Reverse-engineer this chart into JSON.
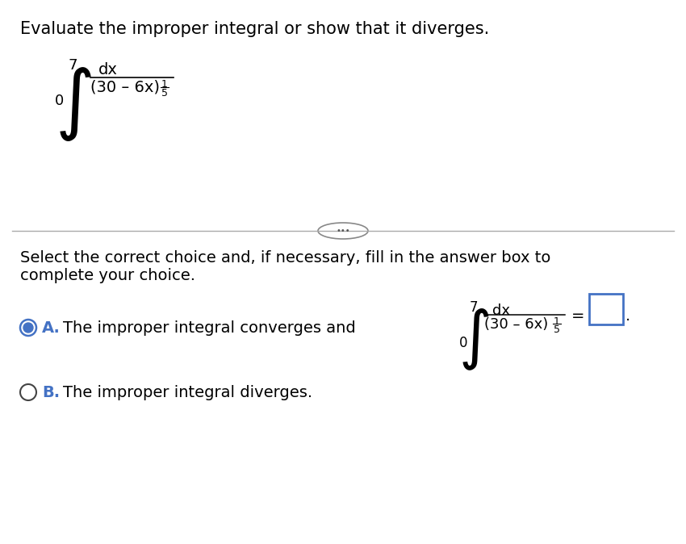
{
  "background_color": "#ffffff",
  "title_text": "Evaluate the improper integral or show that it diverges.",
  "title_fontsize": 15,
  "integral_denominator": "(30 – 6x)",
  "dots_text": "•••",
  "select_line1": "Select the correct choice and, if necessary, fill in the answer box to",
  "select_line2": "complete your choice.",
  "option_A_label": "A.",
  "option_A_text": "The improper integral converges and",
  "option_B_label": "B.",
  "option_B_text": "The improper integral diverges.",
  "radio_color_A": "#4472c4",
  "radio_color_B": "#444444",
  "answer_box_color": "#4472c4",
  "font_color": "#000000",
  "label_color_A": "#4472c4",
  "label_color_B": "#4472c4"
}
